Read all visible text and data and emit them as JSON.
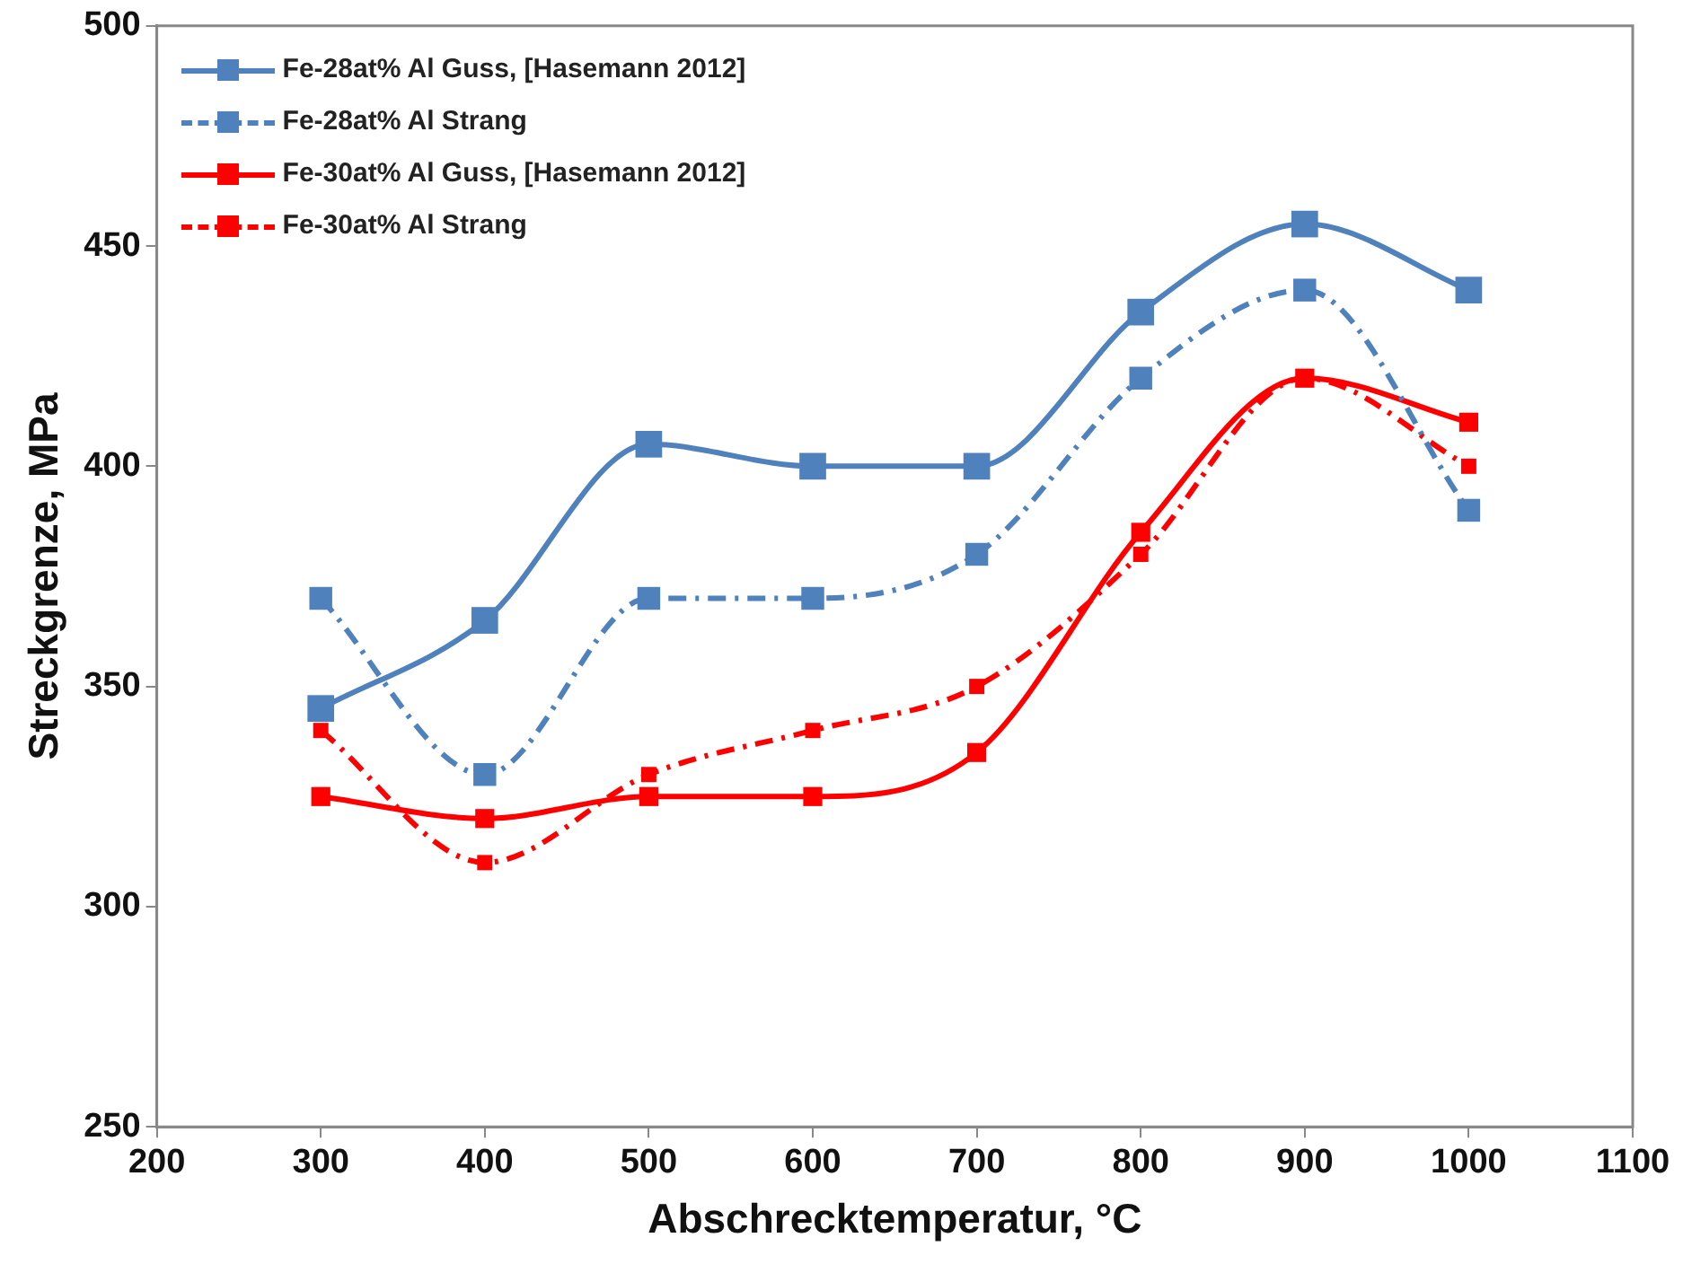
{
  "chart_data": {
    "type": "line",
    "xlabel": "Abschrecktemperatur, °C",
    "ylabel": "Streckgrenze, MPa",
    "x": [
      300,
      400,
      500,
      600,
      700,
      800,
      900,
      1000
    ],
    "series": [
      {
        "name": "Fe-28at% Al Guss, [Hasemann 2012]",
        "color": "#4f81bd",
        "line_style": "solid",
        "values": [
          345,
          365,
          405,
          400,
          400,
          435,
          455,
          440
        ]
      },
      {
        "name": "Fe-28at% Al Strang",
        "color": "#4f81bd",
        "line_style": "dashed",
        "values": [
          370,
          330,
          370,
          370,
          380,
          420,
          440,
          390
        ]
      },
      {
        "name": "Fe-30at% Al Guss, [Hasemann 2012]",
        "color": "#ff0000",
        "line_style": "solid",
        "values": [
          325,
          320,
          325,
          325,
          335,
          385,
          420,
          410
        ]
      },
      {
        "name": "Fe-30at% Al Strang",
        "color": "#ff0000",
        "line_style": "dashed",
        "values": [
          340,
          310,
          330,
          340,
          350,
          380,
          420,
          400
        ]
      }
    ],
    "xlim": [
      200,
      1100
    ],
    "xticks": [
      200,
      300,
      400,
      500,
      600,
      700,
      800,
      900,
      1000,
      1100
    ],
    "ylim": [
      250,
      500
    ],
    "yticks": [
      250,
      300,
      350,
      400,
      450,
      500
    ],
    "grid": false,
    "legend": "top left",
    "marker": "square"
  }
}
